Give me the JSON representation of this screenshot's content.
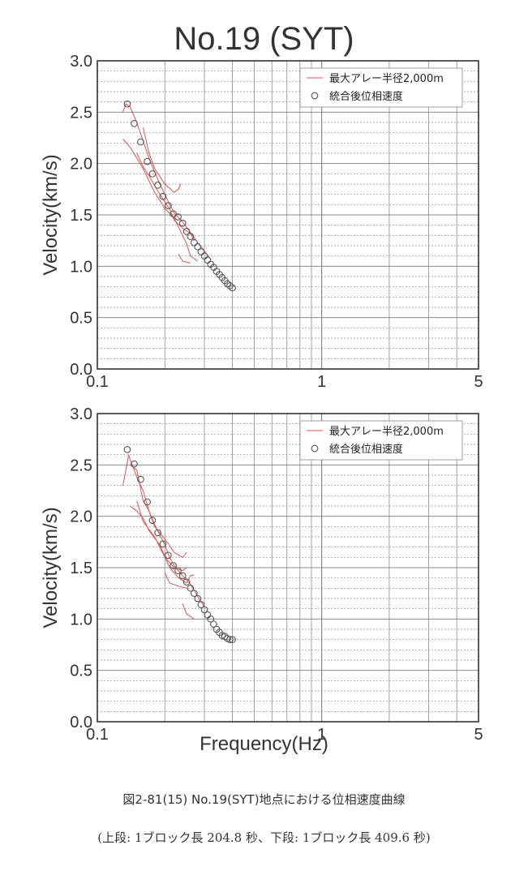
{
  "title": "No.19 (SYT)",
  "xlabel": "Frequency(Hz)",
  "caption": "図2-81(15) No.19(SYT)地点における位相速度曲線",
  "subcaption": "(上段: 1ブロック長 204.8 秒、下段: 1ブロック長 409.6 秒)",
  "colors": {
    "line": "#d9534f",
    "marker": "#555555",
    "grid": "#8a8a8a",
    "frame": "#333333"
  },
  "chart_data": [
    {
      "type": "scatter",
      "ylabel": "Velocity(km/s)",
      "xscale": "log",
      "xlim": [
        0.1,
        5
      ],
      "ylim": [
        0,
        3
      ],
      "xticks": [
        "0.1",
        "1",
        "5"
      ],
      "yticks": [
        "0.0",
        "0.5",
        "1.0",
        "1.5",
        "2.0",
        "2.5",
        "3.0"
      ],
      "grid": true,
      "legend": {
        "position": "top-right",
        "entries": [
          "最大アレー半径2,000m",
          "統合後位相速度"
        ]
      },
      "series": [
        {
          "name": "最大アレー半径2,000m",
          "kind": "line",
          "curves": [
            [
              [
                0.13,
                2.5
              ],
              [
                0.134,
                2.58
              ],
              [
                0.14,
                2.55
              ],
              [
                0.15,
                2.4
              ],
              [
                0.16,
                2.22
              ],
              [
                0.17,
                2.05
              ],
              [
                0.18,
                1.92
              ],
              [
                0.19,
                1.8
              ],
              [
                0.2,
                1.7
              ],
              [
                0.21,
                1.6
              ],
              [
                0.22,
                1.52
              ],
              [
                0.24,
                1.43
              ],
              [
                0.26,
                1.33
              ],
              [
                0.28,
                1.23
              ],
              [
                0.3,
                1.15
              ],
              [
                0.32,
                1.07
              ]
            ],
            [
              [
                0.13,
                2.24
              ],
              [
                0.14,
                2.16
              ],
              [
                0.15,
                2.05
              ],
              [
                0.16,
                1.95
              ],
              [
                0.17,
                1.83
              ],
              [
                0.18,
                1.72
              ],
              [
                0.19,
                1.64
              ],
              [
                0.2,
                1.56
              ],
              [
                0.22,
                1.47
              ],
              [
                0.23,
                1.38
              ],
              [
                0.25,
                1.22
              ],
              [
                0.26,
                1.1
              ],
              [
                0.28,
                1.05
              ]
            ],
            [
              [
                0.16,
                2.35
              ],
              [
                0.17,
                2.1
              ],
              [
                0.18,
                1.95
              ],
              [
                0.2,
                1.8
              ],
              [
                0.22,
                1.72
              ],
              [
                0.23,
                1.75
              ],
              [
                0.235,
                1.8
              ]
            ],
            [
              [
                0.15,
                2.1
              ],
              [
                0.16,
                1.97
              ],
              [
                0.17,
                1.88
              ],
              [
                0.19,
                1.7
              ],
              [
                0.21,
                1.56
              ],
              [
                0.22,
                1.45
              ],
              [
                0.24,
                1.37
              ],
              [
                0.26,
                1.32
              ],
              [
                0.27,
                1.25
              ]
            ],
            [
              [
                0.23,
                1.12
              ],
              [
                0.24,
                1.05
              ],
              [
                0.26,
                1.03
              ]
            ]
          ]
        },
        {
          "name": "統合後位相速度",
          "kind": "markers",
          "x": [
            0.136,
            0.146,
            0.156,
            0.167,
            0.176,
            0.186,
            0.196,
            0.207,
            0.218,
            0.229,
            0.24,
            0.25,
            0.26,
            0.27,
            0.28,
            0.29,
            0.3,
            0.31,
            0.32,
            0.33,
            0.34,
            0.35,
            0.36,
            0.37,
            0.38,
            0.39,
            0.4
          ],
          "y": [
            2.58,
            2.39,
            2.21,
            2.02,
            1.9,
            1.79,
            1.68,
            1.59,
            1.51,
            1.48,
            1.42,
            1.34,
            1.29,
            1.23,
            1.19,
            1.14,
            1.1,
            1.06,
            1.02,
            0.99,
            0.95,
            0.92,
            0.89,
            0.86,
            0.83,
            0.81,
            0.79
          ]
        }
      ]
    },
    {
      "type": "scatter",
      "ylabel": "Velocity(km/s)",
      "xscale": "log",
      "xlim": [
        0.1,
        5
      ],
      "ylim": [
        0,
        3
      ],
      "xticks": [
        "0.1",
        "1",
        "5"
      ],
      "yticks": [
        "0.0",
        "0.5",
        "1.0",
        "1.5",
        "2.0",
        "2.5",
        "3.0"
      ],
      "grid": true,
      "legend": {
        "position": "top-right",
        "entries": [
          "最大アレー半径2,000m",
          "統合後位相速度"
        ]
      },
      "series": [
        {
          "name": "最大アレー半径2,000m",
          "kind": "line",
          "curves": [
            [
              [
                0.13,
                2.3
              ],
              [
                0.134,
                2.45
              ],
              [
                0.138,
                2.6
              ],
              [
                0.14,
                2.55
              ],
              [
                0.145,
                2.47
              ],
              [
                0.15,
                2.38
              ],
              [
                0.16,
                2.25
              ],
              [
                0.17,
                2.05
              ],
              [
                0.18,
                1.92
              ],
              [
                0.19,
                1.82
              ],
              [
                0.2,
                1.72
              ],
              [
                0.21,
                1.6
              ],
              [
                0.22,
                1.52
              ],
              [
                0.24,
                1.42
              ],
              [
                0.26,
                1.34
              ],
              [
                0.28,
                1.22
              ],
              [
                0.3,
                1.12
              ]
            ],
            [
              [
                0.14,
                2.5
              ],
              [
                0.15,
                2.45
              ],
              [
                0.16,
                2.15
              ],
              [
                0.17,
                2.05
              ],
              [
                0.18,
                1.9
              ],
              [
                0.2,
                1.78
              ],
              [
                0.22,
                1.65
              ],
              [
                0.24,
                1.6
              ],
              [
                0.25,
                1.65
              ]
            ],
            [
              [
                0.14,
                2.1
              ],
              [
                0.15,
                2.05
              ],
              [
                0.16,
                1.98
              ],
              [
                0.17,
                1.86
              ],
              [
                0.19,
                1.72
              ],
              [
                0.21,
                1.5
              ],
              [
                0.23,
                1.4
              ],
              [
                0.25,
                1.35
              ],
              [
                0.26,
                1.42
              ],
              [
                0.27,
                1.43
              ]
            ],
            [
              [
                0.15,
                2.15
              ],
              [
                0.16,
                1.95
              ],
              [
                0.18,
                1.8
              ],
              [
                0.2,
                1.6
              ],
              [
                0.22,
                1.5
              ],
              [
                0.24,
                1.47
              ],
              [
                0.25,
                1.5
              ]
            ],
            [
              [
                0.2,
                1.45
              ],
              [
                0.21,
                1.35
              ],
              [
                0.23,
                1.32
              ],
              [
                0.25,
                1.3
              ]
            ],
            [
              [
                0.24,
                1.15
              ],
              [
                0.25,
                1.05
              ],
              [
                0.27,
                1.0
              ]
            ]
          ]
        },
        {
          "name": "統合後位相速度",
          "kind": "markers",
          "x": [
            0.136,
            0.146,
            0.156,
            0.167,
            0.176,
            0.186,
            0.196,
            0.207,
            0.218,
            0.229,
            0.24,
            0.25,
            0.26,
            0.27,
            0.28,
            0.29,
            0.3,
            0.31,
            0.32,
            0.33,
            0.34,
            0.35,
            0.36,
            0.37,
            0.38,
            0.39,
            0.4
          ],
          "y": [
            2.65,
            2.51,
            2.36,
            2.14,
            1.96,
            1.84,
            1.73,
            1.62,
            1.52,
            1.47,
            1.42,
            1.36,
            1.3,
            1.25,
            1.2,
            1.14,
            1.09,
            1.04,
            1.0,
            0.95,
            0.9,
            0.87,
            0.84,
            0.83,
            0.81,
            0.8,
            0.8
          ]
        }
      ]
    }
  ]
}
